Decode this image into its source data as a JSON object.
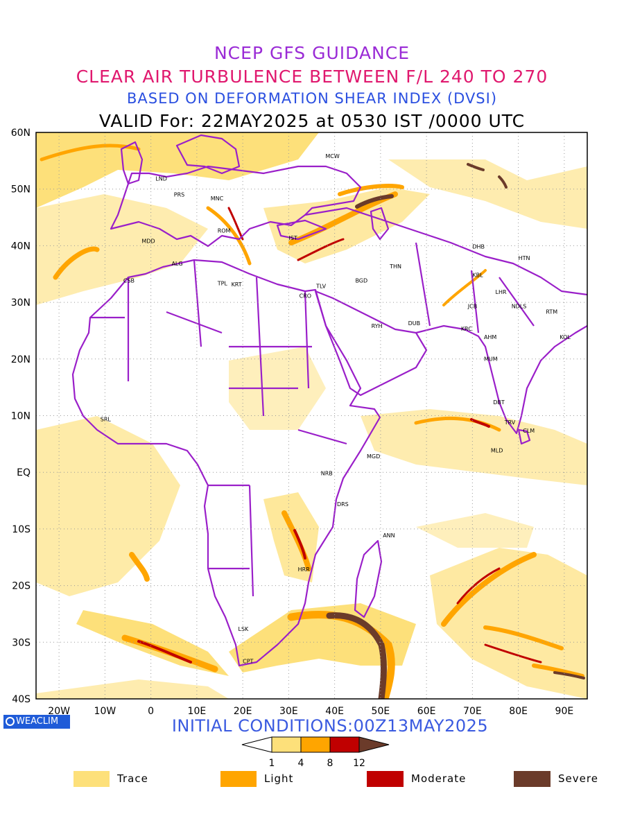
{
  "header": {
    "line1": "NCEP GFS GUIDANCE",
    "line2": "CLEAR AIR TURBULENCE BETWEEN F/L 240 TO 270",
    "line3": "BASED ON DEFORMATION SHEAR INDEX (DVSI)",
    "line4": "VALID For: 22MAY2025 at 0530 IST /0000 UTC"
  },
  "colors": {
    "line1": "#9a2bd6",
    "line2": "#e0186e",
    "line3": "#2a4fe0",
    "border": "#9a1fc9",
    "init": "#3a5ae0",
    "trace": "#fde07a",
    "light": "#ffa500",
    "moderate": "#c00000",
    "severe": "#6b3b2a"
  },
  "map": {
    "lat_labels": [
      "60N",
      "50N",
      "40N",
      "30N",
      "20N",
      "10N",
      "EQ",
      "10S",
      "20S",
      "30S",
      "40S"
    ],
    "lon_labels": [
      "20W",
      "10W",
      "0",
      "10E",
      "20E",
      "30E",
      "40E",
      "50E",
      "60E",
      "70E",
      "80E",
      "90E"
    ],
    "cities": [
      {
        "name": "MCW",
        "lon": 38,
        "lat": 55.5
      },
      {
        "name": "LND",
        "lon": 1,
        "lat": 51.5
      },
      {
        "name": "PRS",
        "lon": 5,
        "lat": 48.7
      },
      {
        "name": "MNC",
        "lon": 13,
        "lat": 48
      },
      {
        "name": "ROM",
        "lon": 14.5,
        "lat": 42.3
      },
      {
        "name": "MDD",
        "lon": -2,
        "lat": 40.5
      },
      {
        "name": "IST",
        "lon": 30,
        "lat": 41
      },
      {
        "name": "ALG",
        "lon": 4.5,
        "lat": 36.5
      },
      {
        "name": "CSB",
        "lon": -6,
        "lat": 33.5
      },
      {
        "name": "TPL",
        "lon": 14.5,
        "lat": 33
      },
      {
        "name": "KRT",
        "lon": 17.5,
        "lat": 32.8
      },
      {
        "name": "TLV",
        "lon": 36,
        "lat": 32.5
      },
      {
        "name": "CRO",
        "lon": 32.3,
        "lat": 30.8
      },
      {
        "name": "BGD",
        "lon": 44.5,
        "lat": 33.5
      },
      {
        "name": "THN",
        "lon": 52,
        "lat": 36
      },
      {
        "name": "RYH",
        "lon": 48,
        "lat": 25.5
      },
      {
        "name": "DUB",
        "lon": 56,
        "lat": 26
      },
      {
        "name": "DHB",
        "lon": 70,
        "lat": 39.5
      },
      {
        "name": "KBL",
        "lon": 70,
        "lat": 34.5
      },
      {
        "name": "HTN",
        "lon": 80,
        "lat": 37.5
      },
      {
        "name": "LHR",
        "lon": 75,
        "lat": 31.5
      },
      {
        "name": "JCB",
        "lon": 69,
        "lat": 29
      },
      {
        "name": "NDLS",
        "lon": 78.5,
        "lat": 29
      },
      {
        "name": "RTM",
        "lon": 86,
        "lat": 28
      },
      {
        "name": "KRC",
        "lon": 67.5,
        "lat": 25
      },
      {
        "name": "AHM",
        "lon": 72.5,
        "lat": 23.5
      },
      {
        "name": "KOL",
        "lon": 89,
        "lat": 23.5
      },
      {
        "name": "MUM",
        "lon": 72.5,
        "lat": 19.7
      },
      {
        "name": "DBT",
        "lon": 74.5,
        "lat": 12
      },
      {
        "name": "TRV",
        "lon": 77,
        "lat": 8.5
      },
      {
        "name": "CLM",
        "lon": 81,
        "lat": 7
      },
      {
        "name": "SRL",
        "lon": -11,
        "lat": 9
      },
      {
        "name": "MLD",
        "lon": 74,
        "lat": 3.5
      },
      {
        "name": "MGD",
        "lon": 47,
        "lat": 2.5
      },
      {
        "name": "NRB",
        "lon": 37,
        "lat": -0.5
      },
      {
        "name": "DRS",
        "lon": 40.5,
        "lat": -6
      },
      {
        "name": "ANN",
        "lon": 50.5,
        "lat": -11.5
      },
      {
        "name": "HRR",
        "lon": 32,
        "lat": -17.5
      },
      {
        "name": "LSK",
        "lon": 19,
        "lat": -28
      },
      {
        "name": "CPT",
        "lon": 20,
        "lat": -33.7
      }
    ]
  },
  "initial_conditions": "INITIAL CONDITIONS:00Z13MAY2025",
  "badge": "WEACLIM",
  "colorbar": {
    "ticks": [
      "1",
      "4",
      "8",
      "12"
    ]
  },
  "legend": [
    {
      "label": "Trace",
      "color": "#fde07a"
    },
    {
      "label": "Light",
      "color": "#ffa500"
    },
    {
      "label": "Moderate",
      "color": "#c00000"
    },
    {
      "label": "Severe",
      "color": "#6b3b2a"
    }
  ]
}
